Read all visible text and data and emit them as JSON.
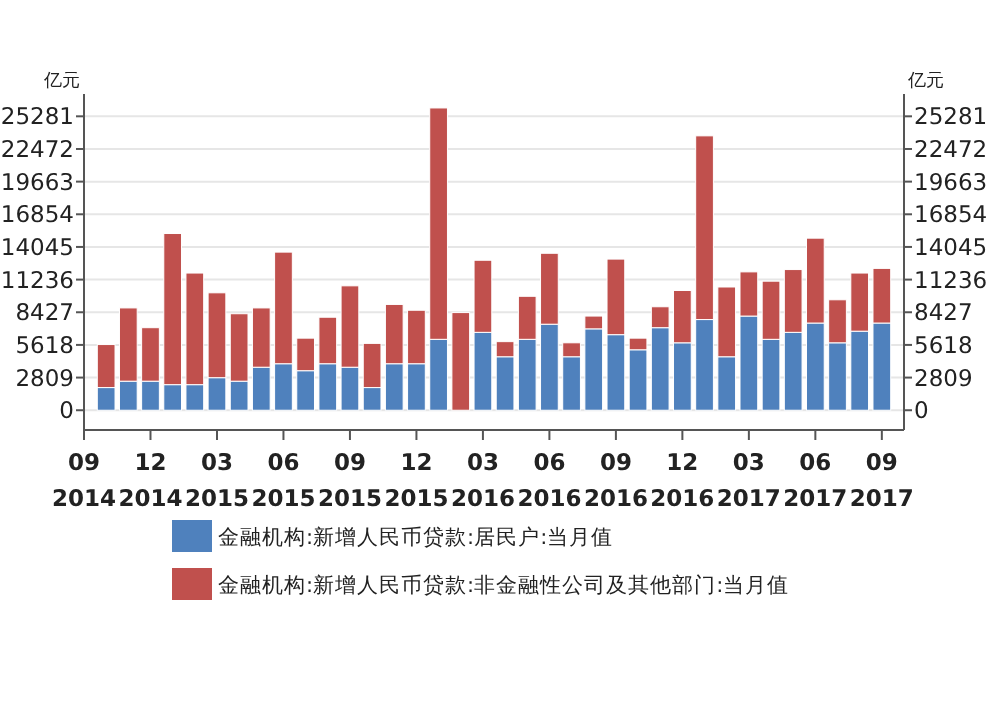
{
  "chart_data": {
    "type": "bar",
    "stacked": true,
    "ylabel": "亿元",
    "y2label": "亿元",
    "x": [
      "2014-10",
      "2014-11",
      "2014-12",
      "2015-01",
      "2015-02",
      "2015-03",
      "2015-04",
      "2015-05",
      "2015-06",
      "2015-07",
      "2015-08",
      "2015-09",
      "2015-10",
      "2015-11",
      "2015-12",
      "2016-01",
      "2016-02",
      "2016-03",
      "2016-04",
      "2016-05",
      "2016-06",
      "2016-07",
      "2016-08",
      "2016-09",
      "2016-10",
      "2016-11",
      "2016-12",
      "2017-01",
      "2017-02",
      "2017-03",
      "2017-04",
      "2017-05",
      "2017-06",
      "2017-07",
      "2017-08",
      "2017-09"
    ],
    "series": [
      {
        "name": "金融机构:新增人民币贷款:居民户:当月值",
        "color": "#4f81bd",
        "values": [
          1950,
          2500,
          2500,
          2200,
          2200,
          2800,
          2500,
          3700,
          4000,
          3400,
          4000,
          3700,
          1950,
          4000,
          4000,
          6100,
          0,
          6700,
          4600,
          6100,
          7400,
          4600,
          7000,
          6500,
          5200,
          7100,
          5800,
          7800,
          4600,
          8100,
          6100,
          6700,
          7500,
          5800,
          6800,
          7500
        ]
      },
      {
        "name": "金融机构:新增人民币贷款:非金融性公司及其他部门:当月值",
        "color": "#c0504d",
        "values": [
          3700,
          6300,
          4600,
          13000,
          9600,
          7300,
          5800,
          5100,
          9600,
          2800,
          4000,
          7000,
          3800,
          5100,
          4600,
          19900,
          8400,
          6200,
          1300,
          3700,
          6100,
          1200,
          1100,
          6500,
          1000,
          1800,
          4500,
          15800,
          6000,
          3800,
          5000,
          5400,
          7300,
          3700,
          5000,
          4700
        ]
      }
    ],
    "xlim": [
      "2014-09",
      "2017-10"
    ],
    "xticks": [
      {
        "value": "2014-09",
        "label": "09 2014"
      },
      {
        "value": "2014-12",
        "label": "12 2014"
      },
      {
        "value": "2015-03",
        "label": "03 2015"
      },
      {
        "value": "2015-06",
        "label": "06 2015"
      },
      {
        "value": "2015-09",
        "label": "09 2015"
      },
      {
        "value": "2015-12",
        "label": "12 2015"
      },
      {
        "value": "2016-03",
        "label": "03 2016"
      },
      {
        "value": "2016-06",
        "label": "06 2016"
      },
      {
        "value": "2016-09",
        "label": "09 2016"
      },
      {
        "value": "2016-12",
        "label": "12 2016"
      },
      {
        "value": "2017-03",
        "label": "03 2017"
      },
      {
        "value": "2017-06",
        "label": "06 2017"
      },
      {
        "value": "2017-09",
        "label": "09 2017"
      }
    ],
    "ylim": [
      -1700,
      27200
    ],
    "yticks": [
      0,
      2809,
      5618,
      8427,
      11236,
      14045,
      16854,
      19663,
      22472,
      25281
    ],
    "y2lim": [
      -1700,
      27200
    ],
    "y2ticks": [
      0,
      2809,
      5618,
      8427,
      11236,
      14045,
      16854,
      19663,
      22472,
      25281
    ],
    "grid": "y",
    "legend": "bottom"
  }
}
